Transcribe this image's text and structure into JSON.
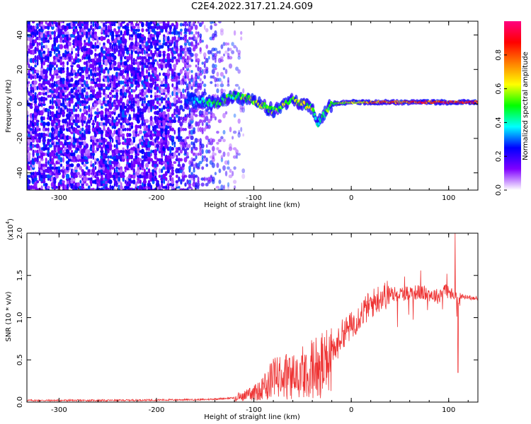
{
  "title": "C2E4.2022.317.21.24.G09",
  "chart_data": [
    {
      "type": "heatmap",
      "xlabel": "Height of straight line (km)",
      "ylabel": "Frequency (Hz)",
      "xlim": [
        -333,
        130
      ],
      "ylim": [
        -50,
        48
      ],
      "xticks": [
        -300,
        -200,
        -100,
        0,
        100
      ],
      "yticks": [
        -40,
        -20,
        0,
        20,
        40
      ],
      "colorbar": {
        "label": "Normalized spectral amplitude",
        "range": [
          0,
          1
        ],
        "ticks": [
          "0.0",
          "0.2",
          "0.4",
          "0.6",
          "0.8"
        ],
        "colors": [
          "#ffffff",
          "#8000ff",
          "#0000ff",
          "#00ffff",
          "#00ff00",
          "#ffff00",
          "#ff8000",
          "#ff0000",
          "#ff0080"
        ]
      },
      "noise_region": {
        "x": [
          -333,
          -120
        ],
        "y": [
          -50,
          48
        ],
        "amplitude": [
          0.05,
          0.3
        ]
      },
      "signal_track": {
        "x": [
          -170,
          -140,
          -120,
          -100,
          -80,
          -60,
          -40,
          -35,
          -20,
          0,
          50,
          100,
          130
        ],
        "y": [
          3,
          0,
          5,
          2,
          -4,
          2,
          -2,
          -12,
          0,
          1,
          1,
          1,
          1
        ],
        "amplitude": [
          0.3,
          0.5,
          0.5,
          0.6,
          0.6,
          0.6,
          0.6,
          0.4,
          0.6,
          0.7,
          0.85,
          0.9,
          0.9
        ]
      }
    },
    {
      "type": "line",
      "xlabel": "Height of straight line (km)",
      "ylabel": "SNR (10 * v/v)",
      "yscale_label": "(x10",
      "yscale_exp": "4",
      "xlim": [
        -333,
        130
      ],
      "ylim": [
        0,
        2
      ],
      "xticks": [
        -300,
        -200,
        -100,
        0,
        100
      ],
      "yticks": [
        "0.0",
        "0.5",
        "1.0",
        "1.5",
        "2.0"
      ],
      "color": "#ee3333",
      "envelope": {
        "x": [
          -333,
          -250,
          -150,
          -120,
          -100,
          -90,
          -80,
          -70,
          -60,
          -50,
          -40,
          -30,
          -21,
          -20,
          -15,
          -10,
          0,
          10,
          20,
          30,
          40,
          50,
          60,
          70,
          80,
          90,
          95,
          100,
          105,
          110,
          115,
          120,
          130
        ],
        "y": [
          0.02,
          0.02,
          0.03,
          0.05,
          0.1,
          0.2,
          0.28,
          0.3,
          0.3,
          0.35,
          0.4,
          0.45,
          0.5,
          0.55,
          0.65,
          0.8,
          0.9,
          1.05,
          1.15,
          1.25,
          1.28,
          1.28,
          1.3,
          1.3,
          1.28,
          1.25,
          1.35,
          1.3,
          1.25,
          1.25,
          1.25,
          1.24,
          1.23
        ]
      }
    }
  ]
}
